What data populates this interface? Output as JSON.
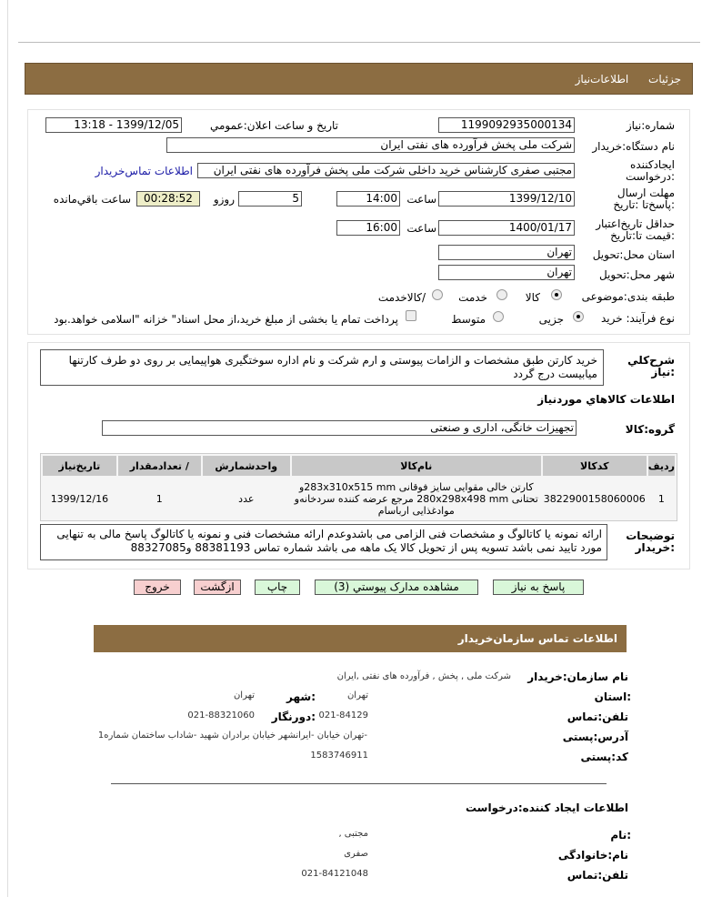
{
  "tabs": [
    "جزئیات",
    "اطلاعات‌نیاز"
  ],
  "form": {
    "need_no_label": "شماره:نیاز",
    "need_no": "1199092935000134",
    "announce_label": "تاریخ و ساعت اعلان:عمومي",
    "announce": "1399/12/05 - 13:18",
    "buyer_label": "نام دستگاه:خریدار",
    "buyer": "شرکت ملی پخش فرآورده های نفتی ایران",
    "creator_label": "ایجادکننده :درخواست",
    "creator": "مجتبی صفری کارشناس خرید داخلی شرکت ملی پخش فرآورده های نفتی ایران",
    "contact_link": "اطلاعات تماس‌خریدار",
    "deadline_label": "مهلت ارسال :پاسخ‌تا :تاریخ",
    "deadline_date": "1399/12/10",
    "time_label": "ساعت",
    "deadline_time": "14:00",
    "days": "5",
    "days_label": "روزو",
    "remaining": "00:28:52",
    "remaining_label": "ساعت باقي‌مانده",
    "validity_label": "حداقل تاریخ‌اعتبار :قیمت تا:تاریخ",
    "validity_date": "1400/01/17",
    "validity_time": "16:00",
    "province_label": "استان محل:تحویل",
    "province": "تهران",
    "city_label": "شهر محل:تحویل",
    "city": "تهران",
    "category_label": "طبقه بندی:موضوعی",
    "category_options": [
      "کالا",
      "خدمت",
      "/کالاخدمت"
    ],
    "category_selected": "کالا",
    "process_label": "نوع فرآیند: خرید",
    "process_options": [
      "جزیی",
      "متوسط"
    ],
    "process_selected": "جزیی",
    "payment_note": "پرداخت تمام یا بخشی از مبلغ خرید،از محل اسناد\" خزانه \"اسلامی خواهد.بود"
  },
  "summary_label": "شرح‌کلي :نیاز",
  "summary": "خرید  کارتن طبق مشخصات و الزامات پیوستی و ارم شرکت و نام اداره سوختگیری هواپیمایی بر روی دو طرف کارتنها میابیست درج گردد",
  "goods_title": "اطلاعات کالاهاي موردنیاز",
  "group_label": "گروه:کالا",
  "group": "تجهیزات خانگی، اداری و صنعتی",
  "table": {
    "headers": [
      "ردیف",
      "کدکالا",
      "نام‌کالا",
      "واحدشمارش",
      "/ تعدادمقدار",
      "تاریخ‌نیاز"
    ],
    "rows": [
      [
        "1",
        "3822900158060006",
        "کارتن خالی مقوایی سایز فوقانی 283x310x515 mmو تحتانی 280x298x498 mm مرجع عرضه کننده سردخانه‌و موادغذایی ارباسام",
        "عدد",
        "1",
        "1399/12/16"
      ]
    ]
  },
  "notes_label": "توضیحات :خریدار",
  "notes": "ارائه نمونه یا کاتالوگ و مشخصات فنی الزامی می باشدوعدم ارائه مشخصات فنی و نمونه یا  کاتالوگ پاسخ مالی به تنهایی مورد تایید نمی باشد تسویه پس از تحویل کالا یک ماهه می باشد شماره تماس 88381193 و88327085",
  "buttons": {
    "reply": "پاسخ به نیاز",
    "docs": "مشاهده مدارک پیوستي (3)",
    "print": "چاپ",
    "back": "ازگشت",
    "exit": "خروج"
  },
  "contact": {
    "title": "اطلاعات  تماس سازمان‌خریدار",
    "org_label": "نام سازمان:خریدار",
    "org": "شرکت ملی , پخش , فرآورده های نفتی ,ایران",
    "province_label": ":استان",
    "province": "تهران",
    "city_label": ":شهر",
    "city": "تهران",
    "phone_label": "تلفن:تماس",
    "phone": "021-84129",
    "fax_label": ":دورنگار",
    "fax": "021-88321060",
    "address_label": "آدرس:پستی",
    "address": "-تهران خیابان -ایرانشهر خیابان برادران شهید -شاداب ساختمان شماره1",
    "postal_label": "کد:پستی",
    "postal": "1583746911",
    "creator_title": "اطلاعات ایجاد کننده:درخواست",
    "name_label": ":نام",
    "name": "مجتبی ,",
    "family_label": "نام:خانوادگی",
    "family": "صفری",
    "cphone_label": "تلفن:تماس",
    "cphone": "021-84121048"
  },
  "colors": {
    "header": "#8c6d42",
    "green_button": "#d9f7d9",
    "red_button": "#f7cfcf",
    "timer": "#eeeec8"
  }
}
